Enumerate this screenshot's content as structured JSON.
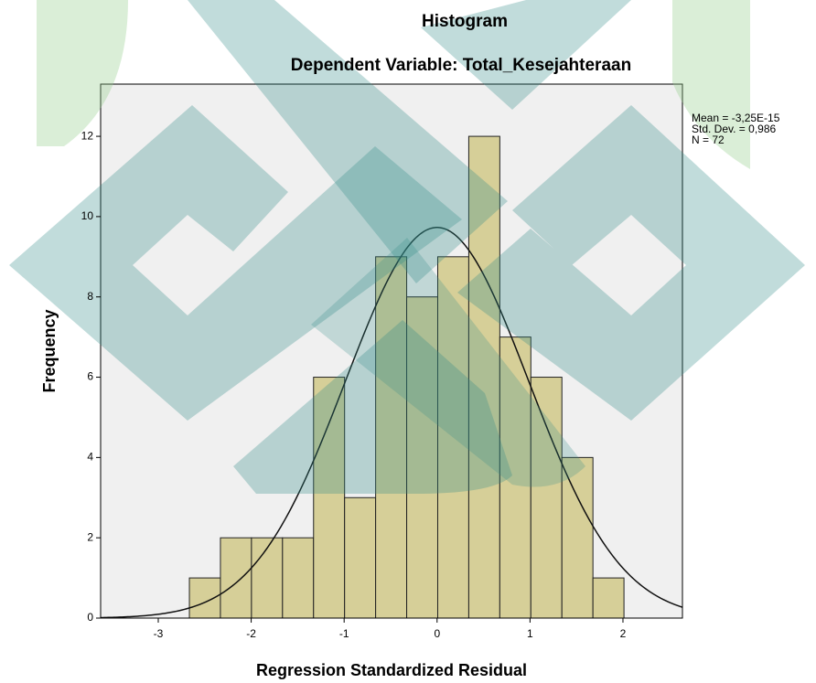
{
  "chart_data": {
    "type": "histogram",
    "title": "Histogram",
    "subtitle": "Dependent Variable: Total_Kesejahteraan",
    "x_label": "Regression Standardized Residual",
    "y_label": "Frequency",
    "annotations": [
      "Mean = -3,25E-15",
      "Std. Dev. = 0,986",
      "N = 72"
    ],
    "bins": [
      -2.665,
      -2.331,
      -1.997,
      -1.663,
      -1.329,
      -0.995,
      -0.661,
      -0.327,
      0.007,
      0.341,
      0.675,
      1.009,
      1.343,
      1.677,
      2.011
    ],
    "values": [
      1,
      2,
      2,
      2,
      6,
      3,
      9,
      8,
      9,
      12,
      7,
      6,
      4,
      1
    ],
    "color": "#d6cf98",
    "normal_curve": {
      "mean": -3.25e-15,
      "std": 0.986,
      "n": 72
    },
    "xlim": [
      -3.62,
      2.64
    ],
    "ylim": [
      0,
      13.3
    ],
    "xticks": [
      -3,
      -2,
      -1,
      0,
      1,
      2
    ],
    "yticks": [
      0,
      2,
      4,
      6,
      8,
      10,
      12
    ]
  }
}
